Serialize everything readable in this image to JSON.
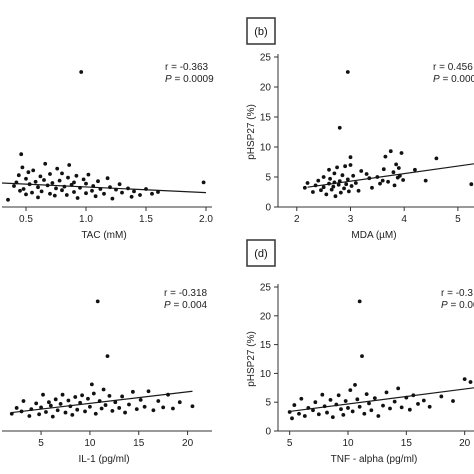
{
  "chart_data": [
    {
      "id": "a",
      "type": "scatter",
      "panel_label": "",
      "xlabel": "TAC (mM)",
      "ylabel": "",
      "xlim": [
        0.3,
        2.05
      ],
      "ylim": [
        0,
        25
      ],
      "xticks": [
        "0.5",
        "1.0",
        "1.5",
        "2.0"
      ],
      "yticks": [],
      "stats": {
        "r": "r = -0.363",
        "p_label": "P",
        "p_value": " = 0.0009"
      },
      "trendline": [
        [
          0.3,
          4.0
        ],
        [
          2.0,
          2.4
        ]
      ],
      "points": [
        [
          0.35,
          1.2
        ],
        [
          0.4,
          3.5
        ],
        [
          0.42,
          4.1
        ],
        [
          0.44,
          5.3
        ],
        [
          0.45,
          2.7
        ],
        [
          0.46,
          8.8
        ],
        [
          0.47,
          6.6
        ],
        [
          0.48,
          3.0
        ],
        [
          0.5,
          4.7
        ],
        [
          0.5,
          2.1
        ],
        [
          0.52,
          5.8
        ],
        [
          0.53,
          3.8
        ],
        [
          0.55,
          2.4
        ],
        [
          0.56,
          6.1
        ],
        [
          0.58,
          4.2
        ],
        [
          0.6,
          3.3
        ],
        [
          0.6,
          1.6
        ],
        [
          0.62,
          5.1
        ],
        [
          0.63,
          2.6
        ],
        [
          0.65,
          4.5
        ],
        [
          0.66,
          7.2
        ],
        [
          0.68,
          3.6
        ],
        [
          0.7,
          2.2
        ],
        [
          0.7,
          5.5
        ],
        [
          0.72,
          4.0
        ],
        [
          0.74,
          1.9
        ],
        [
          0.75,
          3.1
        ],
        [
          0.76,
          6.4
        ],
        [
          0.78,
          4.4
        ],
        [
          0.8,
          2.8
        ],
        [
          0.8,
          5.6
        ],
        [
          0.82,
          3.4
        ],
        [
          0.84,
          2.0
        ],
        [
          0.85,
          4.9
        ],
        [
          0.86,
          7.0
        ],
        [
          0.88,
          3.7
        ],
        [
          0.9,
          2.5
        ],
        [
          0.9,
          4.1
        ],
        [
          0.92,
          5.2
        ],
        [
          0.93,
          1.5
        ],
        [
          0.95,
          3.2
        ],
        [
          0.96,
          22.5
        ],
        [
          0.98,
          4.6
        ],
        [
          1.0,
          2.3
        ],
        [
          1.0,
          3.9
        ],
        [
          1.02,
          5.4
        ],
        [
          1.05,
          2.7
        ],
        [
          1.06,
          3.5
        ],
        [
          1.08,
          1.8
        ],
        [
          1.1,
          4.3
        ],
        [
          1.12,
          3.0
        ],
        [
          1.15,
          2.2
        ],
        [
          1.18,
          4.8
        ],
        [
          1.2,
          3.3
        ],
        [
          1.22,
          1.4
        ],
        [
          1.25,
          2.9
        ],
        [
          1.28,
          3.8
        ],
        [
          1.3,
          2.4
        ],
        [
          1.35,
          3.1
        ],
        [
          1.38,
          1.7
        ],
        [
          1.4,
          2.6
        ],
        [
          1.45,
          2.0
        ],
        [
          1.5,
          3.0
        ],
        [
          1.55,
          2.2
        ],
        [
          1.6,
          2.5
        ],
        [
          1.98,
          4.1
        ]
      ]
    },
    {
      "id": "b",
      "type": "scatter",
      "panel_label": "(b)",
      "xlabel": "MDA (µM)",
      "ylabel": "pHSP27 (%)",
      "xlim": [
        1.65,
        5.3
      ],
      "ylim": [
        0,
        25
      ],
      "xticks": [
        "2",
        "3",
        "4",
        "5"
      ],
      "yticks": [
        "0",
        "5",
        "10",
        "15",
        "20",
        "25"
      ],
      "stats": {
        "r": "r = 0.456",
        "p_label": "P",
        "p_value": " = 0.000"
      },
      "trendline": [
        [
          2.2,
          3.3
        ],
        [
          5.3,
          7.2
        ]
      ],
      "points": [
        [
          2.15,
          3.2
        ],
        [
          2.2,
          4.0
        ],
        [
          2.3,
          2.5
        ],
        [
          2.35,
          3.6
        ],
        [
          2.4,
          4.4
        ],
        [
          2.45,
          2.8
        ],
        [
          2.5,
          3.3
        ],
        [
          2.5,
          5.0
        ],
        [
          2.55,
          2.1
        ],
        [
          2.6,
          3.9
        ],
        [
          2.6,
          6.2
        ],
        [
          2.62,
          4.7
        ],
        [
          2.65,
          2.9
        ],
        [
          2.68,
          3.4
        ],
        [
          2.7,
          5.6
        ],
        [
          2.7,
          4.1
        ],
        [
          2.72,
          1.8
        ],
        [
          2.75,
          6.6
        ],
        [
          2.78,
          3.7
        ],
        [
          2.8,
          13.2
        ],
        [
          2.8,
          4.3
        ],
        [
          2.82,
          2.4
        ],
        [
          2.85,
          5.3
        ],
        [
          2.88,
          3.1
        ],
        [
          2.9,
          6.8
        ],
        [
          2.92,
          3.8
        ],
        [
          2.95,
          22.5
        ],
        [
          2.95,
          4.6
        ],
        [
          2.97,
          2.6
        ],
        [
          3.0,
          8.3
        ],
        [
          3.0,
          7.0
        ],
        [
          3.02,
          3.5
        ],
        [
          3.05,
          5.2
        ],
        [
          3.1,
          4.0
        ],
        [
          3.15,
          2.7
        ],
        [
          3.2,
          6.0
        ],
        [
          3.3,
          5.5
        ],
        [
          3.35,
          4.8
        ],
        [
          3.4,
          3.2
        ],
        [
          3.5,
          5.0
        ],
        [
          3.55,
          3.9
        ],
        [
          3.6,
          4.4
        ],
        [
          3.62,
          6.3
        ],
        [
          3.65,
          8.4
        ],
        [
          3.7,
          4.2
        ],
        [
          3.75,
          9.3
        ],
        [
          3.8,
          5.8
        ],
        [
          3.82,
          3.6
        ],
        [
          3.85,
          7.1
        ],
        [
          3.88,
          4.9
        ],
        [
          3.9,
          6.5
        ],
        [
          3.92,
          5.2
        ],
        [
          3.95,
          9.0
        ],
        [
          3.98,
          4.5
        ],
        [
          4.2,
          6.2
        ],
        [
          4.4,
          4.4
        ],
        [
          4.6,
          8.1
        ],
        [
          5.25,
          3.8
        ]
      ]
    },
    {
      "id": "c",
      "type": "scatter",
      "panel_label": "",
      "xlabel": "IL-1 (pg/ml)",
      "ylabel": "",
      "xlim": [
        1.0,
        22.5
      ],
      "ylim": [
        0,
        25
      ],
      "xticks": [
        "5",
        "10",
        "15",
        "20"
      ],
      "yticks": [],
      "stats": {
        "r": "r = -0.318",
        "p_label": "P",
        "p_value": " = 0.004"
      },
      "trendline": [
        [
          2.0,
          3.2
        ],
        [
          20.5,
          6.9
        ]
      ],
      "points": [
        [
          2.0,
          3.0
        ],
        [
          2.5,
          4.0
        ],
        [
          3.0,
          3.4
        ],
        [
          3.2,
          5.2
        ],
        [
          3.8,
          2.6
        ],
        [
          4.0,
          3.8
        ],
        [
          4.5,
          4.8
        ],
        [
          4.8,
          2.9
        ],
        [
          5.0,
          4.1
        ],
        [
          5.2,
          6.3
        ],
        [
          5.5,
          3.3
        ],
        [
          5.8,
          5.0
        ],
        [
          6.0,
          4.4
        ],
        [
          6.2,
          2.5
        ],
        [
          6.5,
          5.5
        ],
        [
          6.7,
          3.6
        ],
        [
          7.0,
          4.7
        ],
        [
          7.2,
          6.3
        ],
        [
          7.5,
          3.2
        ],
        [
          7.8,
          5.3
        ],
        [
          8.0,
          4.3
        ],
        [
          8.2,
          2.8
        ],
        [
          8.5,
          5.9
        ],
        [
          8.7,
          3.7
        ],
        [
          9.0,
          4.9
        ],
        [
          9.2,
          6.2
        ],
        [
          9.5,
          3.4
        ],
        [
          9.8,
          5.6
        ],
        [
          10.0,
          4.2
        ],
        [
          10.2,
          8.1
        ],
        [
          10.4,
          6.5
        ],
        [
          10.6,
          3.0
        ],
        [
          10.8,
          22.5
        ],
        [
          11.0,
          5.2
        ],
        [
          11.2,
          3.9
        ],
        [
          11.4,
          7.2
        ],
        [
          11.6,
          4.5
        ],
        [
          11.8,
          13.0
        ],
        [
          12.0,
          6.1
        ],
        [
          12.3,
          3.5
        ],
        [
          12.6,
          5.0
        ],
        [
          13.0,
          4.0
        ],
        [
          13.3,
          6.0
        ],
        [
          13.6,
          3.2
        ],
        [
          14.0,
          4.6
        ],
        [
          14.4,
          6.8
        ],
        [
          14.8,
          3.8
        ],
        [
          15.2,
          5.4
        ],
        [
          15.6,
          4.2
        ],
        [
          16.0,
          6.9
        ],
        [
          16.5,
          3.6
        ],
        [
          17.0,
          5.2
        ],
        [
          17.5,
          4.1
        ],
        [
          18.0,
          6.3
        ],
        [
          18.5,
          3.9
        ],
        [
          19.2,
          5.0
        ],
        [
          20.5,
          4.3
        ]
      ]
    },
    {
      "id": "d",
      "type": "scatter",
      "panel_label": "(d)",
      "xlabel": "TNF - alpha (pg/ml)",
      "ylabel": "pHSP27 (%)",
      "xlim": [
        4.0,
        20.8
      ],
      "ylim": [
        0,
        25
      ],
      "xticks": [
        "5",
        "10",
        "15",
        "20"
      ],
      "yticks": [
        "0",
        "5",
        "10",
        "15",
        "20",
        "25"
      ],
      "stats": {
        "r": "r = -0.3",
        "p_label": "P",
        "p_value": " = 0.00"
      },
      "trendline": [
        [
          5.0,
          3.4
        ],
        [
          20.8,
          7.5
        ]
      ],
      "points": [
        [
          5.0,
          3.3
        ],
        [
          5.2,
          2.2
        ],
        [
          5.4,
          4.5
        ],
        [
          5.8,
          3.0
        ],
        [
          6.0,
          5.6
        ],
        [
          6.3,
          2.6
        ],
        [
          6.6,
          4.0
        ],
        [
          7.0,
          3.6
        ],
        [
          7.2,
          5.0
        ],
        [
          7.5,
          2.9
        ],
        [
          7.8,
          6.3
        ],
        [
          8.0,
          4.3
        ],
        [
          8.2,
          3.2
        ],
        [
          8.5,
          5.4
        ],
        [
          8.7,
          2.4
        ],
        [
          9.0,
          4.6
        ],
        [
          9.2,
          6.2
        ],
        [
          9.4,
          3.8
        ],
        [
          9.6,
          2.8
        ],
        [
          9.8,
          5.2
        ],
        [
          10.0,
          4.0
        ],
        [
          10.2,
          7.1
        ],
        [
          10.4,
          3.4
        ],
        [
          10.6,
          8.0
        ],
        [
          10.8,
          5.5
        ],
        [
          11.0,
          22.5
        ],
        [
          11.0,
          4.2
        ],
        [
          11.2,
          13.0
        ],
        [
          11.4,
          3.0
        ],
        [
          11.6,
          6.4
        ],
        [
          11.8,
          4.8
        ],
        [
          12.0,
          3.6
        ],
        [
          12.3,
          5.7
        ],
        [
          12.6,
          2.6
        ],
        [
          13.0,
          4.4
        ],
        [
          13.3,
          6.7
        ],
        [
          13.6,
          3.9
        ],
        [
          14.0,
          5.1
        ],
        [
          14.3,
          7.4
        ],
        [
          14.6,
          4.1
        ],
        [
          15.0,
          5.8
        ],
        [
          15.3,
          3.7
        ],
        [
          15.6,
          6.2
        ],
        [
          16.0,
          4.7
        ],
        [
          16.5,
          5.3
        ],
        [
          17.0,
          4.2
        ],
        [
          18.0,
          6.0
        ],
        [
          19.0,
          5.2
        ],
        [
          20.0,
          9.0
        ],
        [
          20.5,
          8.5
        ]
      ]
    }
  ]
}
